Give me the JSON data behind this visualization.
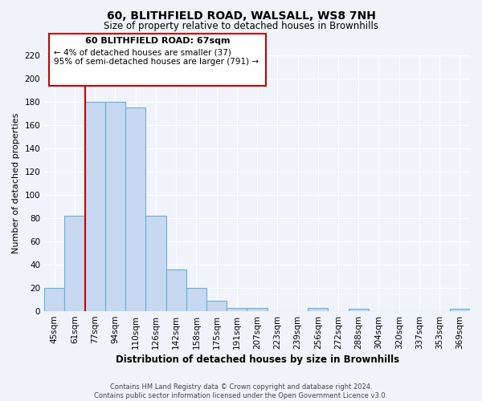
{
  "title": "60, BLITHFIELD ROAD, WALSALL, WS8 7NH",
  "subtitle": "Size of property relative to detached houses in Brownhills",
  "xlabel": "Distribution of detached houses by size in Brownhills",
  "ylabel": "Number of detached properties",
  "bar_labels": [
    "45sqm",
    "61sqm",
    "77sqm",
    "94sqm",
    "110sqm",
    "126sqm",
    "142sqm",
    "158sqm",
    "175sqm",
    "191sqm",
    "207sqm",
    "223sqm",
    "239sqm",
    "256sqm",
    "272sqm",
    "288sqm",
    "304sqm",
    "320sqm",
    "337sqm",
    "353sqm",
    "369sqm"
  ],
  "bar_values": [
    20,
    82,
    180,
    180,
    175,
    82,
    36,
    20,
    9,
    3,
    3,
    0,
    0,
    3,
    0,
    2,
    0,
    0,
    0,
    0,
    2
  ],
  "bar_color": "#c6d9f0",
  "bar_edge_color": "#6aaed6",
  "ylim": [
    0,
    220
  ],
  "yticks": [
    0,
    20,
    40,
    60,
    80,
    100,
    120,
    140,
    160,
    180,
    200,
    220
  ],
  "property_line_color": "#cc0000",
  "annotation_line1": "60 BLITHFIELD ROAD: 67sqm",
  "annotation_line2": "← 4% of detached houses are smaller (37)",
  "annotation_line3": "95% of semi-detached houses are larger (791) →",
  "footer_line1": "Contains HM Land Registry data © Crown copyright and database right 2024.",
  "footer_line2": "Contains public sector information licensed under the Open Government Licence v3.0.",
  "background_color": "#f0f4fa",
  "grid_color": "#ffffff"
}
